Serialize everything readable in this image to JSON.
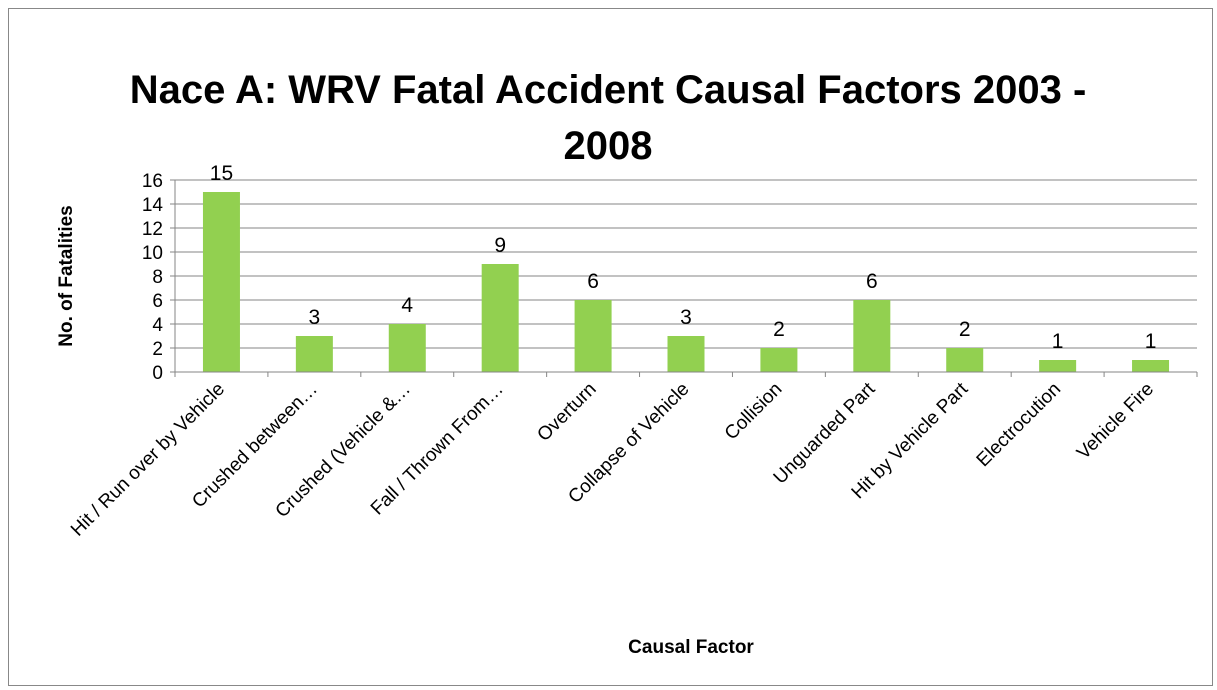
{
  "chart_data": {
    "type": "bar",
    "title": "Nace A: WRV Fatal Accident Causal Factors 2003 - 2008",
    "x_label": "Causal Factor",
    "y_label": "No. of Fatalities",
    "categories": [
      "Hit / Run over by Vehicle",
      "Crushed between…",
      "Crushed (Vehicle &…",
      "Fall / Thrown From…",
      "Overturn",
      "Collapse of Vehicle",
      "Collision",
      "Unguarded Part",
      "Hit by Vehicle Part",
      "Electrocution",
      "Vehicle Fire"
    ],
    "values": [
      15,
      3,
      4,
      9,
      6,
      3,
      2,
      6,
      2,
      1,
      1
    ],
    "color": "#92d050",
    "ylim": [
      0,
      16
    ],
    "yticks": [
      0,
      2,
      4,
      6,
      8,
      10,
      12,
      14,
      16
    ],
    "grid": true
  }
}
